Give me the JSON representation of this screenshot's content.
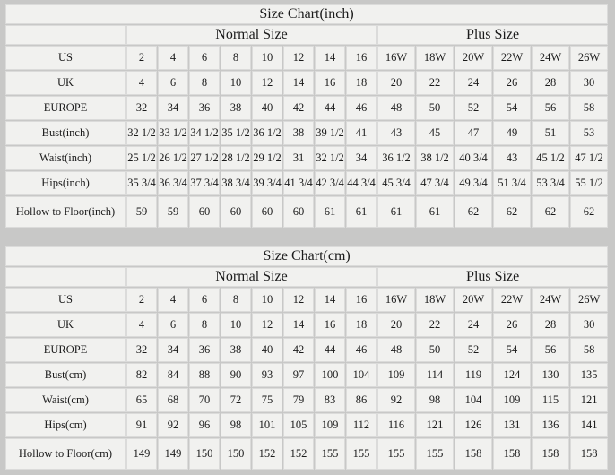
{
  "page": {
    "background": "#c8c8c7"
  },
  "colors": {
    "page_bg": "#c8c8c7",
    "cell_bg": "#f1f1ef",
    "header_cell_bg": "#f6f6f4",
    "border": "#dbdbda",
    "text": "#1b1b1b"
  },
  "chart_data": [
    {
      "type": "table",
      "title": "Size Chart(inch)",
      "column_groups": [
        {
          "label": "Normal Size",
          "span": 8
        },
        {
          "label": "Plus Size",
          "span": 6
        }
      ],
      "rows": [
        {
          "label": "US",
          "values": [
            "2",
            "4",
            "6",
            "8",
            "10",
            "12",
            "14",
            "16",
            "16W",
            "18W",
            "20W",
            "22W",
            "24W",
            "26W"
          ]
        },
        {
          "label": "UK",
          "values": [
            "4",
            "6",
            "8",
            "10",
            "12",
            "14",
            "16",
            "18",
            "20",
            "22",
            "24",
            "26",
            "28",
            "30"
          ]
        },
        {
          "label": "EUROPE",
          "values": [
            "32",
            "34",
            "36",
            "38",
            "40",
            "42",
            "44",
            "46",
            "48",
            "50",
            "52",
            "54",
            "56",
            "58"
          ]
        },
        {
          "label": "Bust(inch)",
          "values": [
            "32 1/2",
            "33 1/2",
            "34 1/2",
            "35 1/2",
            "36 1/2",
            "38",
            "39 1/2",
            "41",
            "43",
            "45",
            "47",
            "49",
            "51",
            "53"
          ]
        },
        {
          "label": "Waist(inch)",
          "values": [
            "25 1/2",
            "26 1/2",
            "27 1/2",
            "28 1/2",
            "29 1/2",
            "31",
            "32 1/2",
            "34",
            "36 1/2",
            "38 1/2",
            "40 3/4",
            "43",
            "45 1/2",
            "47 1/2"
          ]
        },
        {
          "label": "Hips(inch)",
          "values": [
            "35 3/4",
            "36 3/4",
            "37 3/4",
            "38 3/4",
            "39 3/4",
            "41 3/4",
            "42 3/4",
            "44 3/4",
            "45 3/4",
            "47 3/4",
            "49 3/4",
            "51 3/4",
            "53 3/4",
            "55 1/2"
          ]
        },
        {
          "label": "Hollow to Floor(inch)",
          "values": [
            "59",
            "59",
            "60",
            "60",
            "60",
            "60",
            "61",
            "61",
            "61",
            "61",
            "62",
            "62",
            "62",
            "62"
          ]
        }
      ]
    },
    {
      "type": "table",
      "title": "Size Chart(cm)",
      "column_groups": [
        {
          "label": "Normal Size",
          "span": 8
        },
        {
          "label": "Plus Size",
          "span": 6
        }
      ],
      "rows": [
        {
          "label": "US",
          "values": [
            "2",
            "4",
            "6",
            "8",
            "10",
            "12",
            "14",
            "16",
            "16W",
            "18W",
            "20W",
            "22W",
            "24W",
            "26W"
          ]
        },
        {
          "label": "UK",
          "values": [
            "4",
            "6",
            "8",
            "10",
            "12",
            "14",
            "16",
            "18",
            "20",
            "22",
            "24",
            "26",
            "28",
            "30"
          ]
        },
        {
          "label": "EUROPE",
          "values": [
            "32",
            "34",
            "36",
            "38",
            "40",
            "42",
            "44",
            "46",
            "48",
            "50",
            "52",
            "54",
            "56",
            "58"
          ]
        },
        {
          "label": "Bust(cm)",
          "values": [
            "82",
            "84",
            "88",
            "90",
            "93",
            "97",
            "100",
            "104",
            "109",
            "114",
            "119",
            "124",
            "130",
            "135"
          ]
        },
        {
          "label": "Waist(cm)",
          "values": [
            "65",
            "68",
            "70",
            "72",
            "75",
            "79",
            "83",
            "86",
            "92",
            "98",
            "104",
            "109",
            "115",
            "121"
          ]
        },
        {
          "label": "Hips(cm)",
          "values": [
            "91",
            "92",
            "96",
            "98",
            "101",
            "105",
            "109",
            "112",
            "116",
            "121",
            "126",
            "131",
            "136",
            "141"
          ]
        },
        {
          "label": "Hollow to Floor(cm)",
          "values": [
            "149",
            "149",
            "150",
            "150",
            "152",
            "152",
            "155",
            "155",
            "155",
            "155",
            "158",
            "158",
            "158",
            "158"
          ]
        }
      ]
    }
  ]
}
